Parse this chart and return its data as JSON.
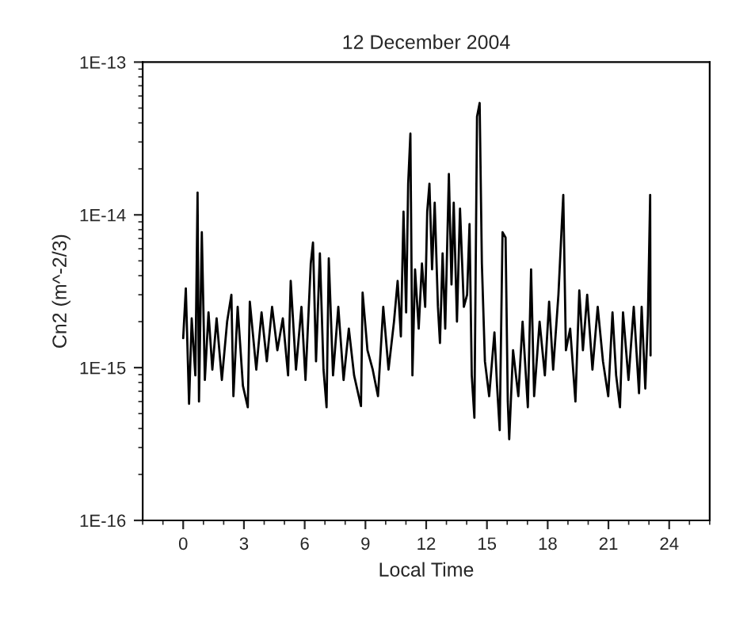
{
  "chart_data": {
    "type": "line",
    "title": "12 December 2004",
    "xlabel": "Local Time",
    "ylabel": "Cn2 (m^-2/3)",
    "log": "y",
    "grid": false,
    "legend": false,
    "marker": "none",
    "line_style": "solid",
    "xlim": [
      -2,
      26
    ],
    "xticks": [
      0,
      3,
      6,
      9,
      12,
      15,
      18,
      21,
      24
    ],
    "ylim": [
      1e-16,
      1e-13
    ],
    "yticks": [
      {
        "value": 1e-16,
        "label": "1E-16"
      },
      {
        "value": 1e-15,
        "label": "1E-15"
      },
      {
        "value": 1e-14,
        "label": "1E-14"
      },
      {
        "value": 1e-13,
        "label": "1E-13"
      }
    ],
    "x": [
      0,
      0.13,
      0.29,
      0.42,
      0.6,
      0.71,
      0.78,
      0.92,
      1.07,
      1.25,
      1.44,
      1.65,
      1.91,
      2.17,
      2.38,
      2.48,
      2.69,
      2.95,
      3.19,
      3.29,
      3.61,
      3.87,
      4.13,
      4.39,
      4.65,
      4.92,
      5.18,
      5.31,
      5.57,
      5.84,
      6.04,
      6.3,
      6.41,
      6.56,
      6.75,
      6.93,
      7.08,
      7.19,
      7.4,
      7.66,
      7.92,
      8.18,
      8.44,
      8.78,
      8.86,
      9.1,
      9.36,
      9.62,
      9.88,
      10.14,
      10.41,
      10.59,
      10.75,
      10.88,
      11.01,
      11.11,
      11.22,
      11.32,
      11.45,
      11.63,
      11.79,
      11.95,
      12.05,
      12.16,
      12.29,
      12.42,
      12.58,
      12.68,
      12.81,
      12.94,
      13.12,
      13.25,
      13.36,
      13.52,
      13.67,
      13.86,
      14.02,
      14.14,
      14.25,
      14.38,
      14.51,
      14.64,
      14.75,
      14.9,
      15.11,
      15.37,
      15.5,
      15.63,
      15.77,
      15.92,
      16.03,
      16.1,
      16.29,
      16.55,
      16.76,
      17.02,
      17.18,
      17.33,
      17.6,
      17.86,
      18.07,
      18.27,
      18.53,
      18.69,
      18.77,
      18.9,
      19.11,
      19.37,
      19.56,
      19.74,
      19.95,
      20.21,
      20.47,
      20.73,
      20.99,
      21.2,
      21.38,
      21.57,
      21.72,
      21.99,
      22.25,
      22.51,
      22.64,
      22.82,
      22.95,
      23.06,
      23.08
    ],
    "series": [
      {
        "color": "#000000",
        "values": [
          1.56e-15,
          3.3e-15,
          5.8e-16,
          2.1e-15,
          8.9e-16,
          1.4e-14,
          6e-16,
          7.7e-15,
          8.3e-16,
          2.3e-15,
          9.7e-16,
          2.1e-15,
          8.3e-16,
          2e-15,
          3e-15,
          6.5e-16,
          2.5e-15,
          7.6e-16,
          5.5e-16,
          2.7e-15,
          9.7e-16,
          2.3e-15,
          1.1e-15,
          2.5e-15,
          1.3e-15,
          2.1e-15,
          8.9e-16,
          3.7e-15,
          9.7e-16,
          2.5e-15,
          8.3e-16,
          4.8e-15,
          6.6e-15,
          1.1e-15,
          5.6e-15,
          9.7e-16,
          5.5e-16,
          5.2e-15,
          8.9e-16,
          2.5e-15,
          8.3e-16,
          1.8e-15,
          8.9e-16,
          5.6e-16,
          3.1e-15,
          1.3e-15,
          9.7e-16,
          6.5e-16,
          2.5e-15,
          9.7e-16,
          2e-15,
          3.7e-15,
          1.6e-15,
          1.05e-14,
          2.3e-15,
          1.6e-14,
          3.4e-14,
          8.9e-16,
          4.4e-15,
          1.8e-15,
          4.8e-15,
          2.5e-15,
          1.05e-14,
          1.6e-14,
          4.4e-15,
          1.2e-14,
          2.5e-15,
          1.45e-15,
          5.6e-15,
          1.8e-15,
          1.85e-14,
          3.5e-15,
          1.2e-14,
          2e-15,
          1.1e-14,
          2.5e-15,
          3e-15,
          8.7e-15,
          8.9e-16,
          4.7e-16,
          4.4e-14,
          5.4e-14,
          4.8e-15,
          1.1e-15,
          6.5e-16,
          1.7e-15,
          7.6e-16,
          3.9e-16,
          7.7e-15,
          7.1e-15,
          6e-16,
          3.4e-16,
          1.3e-15,
          6.5e-16,
          2e-15,
          5.5e-16,
          4.4e-15,
          6.5e-16,
          2e-15,
          8.9e-16,
          2.7e-15,
          9.7e-16,
          3e-15,
          8.3e-15,
          1.35e-14,
          1.3e-15,
          1.8e-15,
          6e-16,
          3.2e-15,
          1.3e-15,
          3e-15,
          9.7e-16,
          2.5e-15,
          1.1e-15,
          6.5e-16,
          2.3e-15,
          8.9e-16,
          5.5e-16,
          2.3e-15,
          8.3e-16,
          2.5e-15,
          6.8e-16,
          2.5e-15,
          7.3e-16,
          2.2e-15,
          1.35e-14,
          1.2e-15
        ]
      }
    ]
  }
}
